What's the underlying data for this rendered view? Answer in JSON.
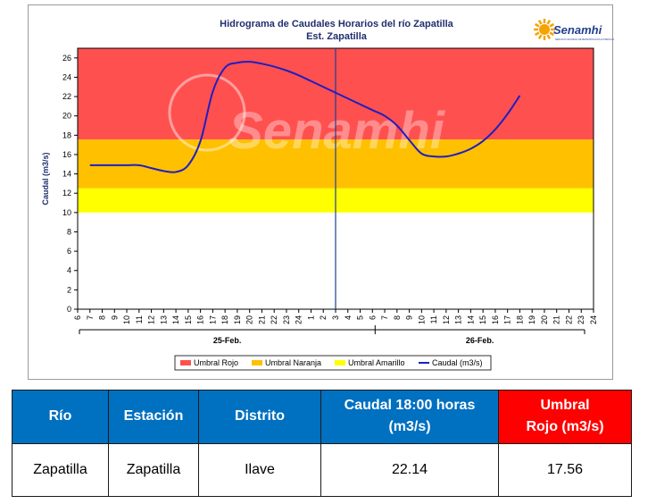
{
  "chart_data": {
    "type": "line",
    "title": "Hidrograma de Caudales Horarios del río Zapatilla",
    "subtitle": "Est. Zapatilla",
    "ylabel": "Caudal  (m3/s)",
    "xlabel": "",
    "ylim": [
      0,
      27
    ],
    "yticks": [
      0,
      2,
      4,
      6,
      8,
      10,
      12,
      14,
      16,
      18,
      20,
      22,
      24,
      26
    ],
    "x_tick_labels": [
      "6",
      "7",
      "8",
      "9",
      "10",
      "11",
      "12",
      "13",
      "14",
      "15",
      "16",
      "17",
      "18",
      "19",
      "20",
      "21",
      "22",
      "23",
      "24",
      "1",
      "2",
      "3",
      "4",
      "5",
      "6",
      "7",
      "8",
      "9",
      "10",
      "11",
      "12",
      "13",
      "14",
      "15",
      "16",
      "17",
      "18",
      "19",
      "20",
      "21",
      "22",
      "23",
      "24"
    ],
    "day_labels": [
      "25-Feb.",
      "26-Feb."
    ],
    "grid": false,
    "legend_position": "bottom",
    "bands": [
      {
        "name": "Umbral Rojo",
        "from": 17.56,
        "to": 27,
        "color": "#ff5050"
      },
      {
        "name": "Umbral Naranja",
        "from": 12.5,
        "to": 17.56,
        "color": "#ffc000"
      },
      {
        "name": "Umbral Amarillo",
        "from": 10,
        "to": 12.5,
        "color": "#ffff00"
      }
    ],
    "series": [
      {
        "name": "Caudal (m3/s)",
        "color": "#1f1fbf",
        "x": [
          7,
          8,
          9,
          10,
          11,
          12,
          13,
          14,
          15,
          16,
          17,
          18,
          19,
          20,
          21,
          22,
          23,
          24,
          25,
          26,
          27,
          28,
          29,
          30,
          31,
          32,
          33,
          34,
          35,
          36,
          37,
          38,
          39,
          40,
          41,
          42
        ],
        "values": [
          14.9,
          14.9,
          14.9,
          14.9,
          14.9,
          14.6,
          14.3,
          14.2,
          14.9,
          17.4,
          22.5,
          25.0,
          25.5,
          25.6,
          25.4,
          25.1,
          24.7,
          24.2,
          23.6,
          23.0,
          22.4,
          21.8,
          21.2,
          20.6,
          20.0,
          19.0,
          17.5,
          16.1,
          15.8,
          15.8,
          16.1,
          16.6,
          17.4,
          18.6,
          20.2,
          22.1
        ]
      }
    ],
    "marker_line": {
      "x": 27,
      "color": "#1f3f8f"
    },
    "watermark": "Senamhi"
  },
  "logo": {
    "text": "Senamhi",
    "subtext": "SERVICIO NACIONAL DE METEOROLOGÍA E HIDROLOGÍA DEL PERÚ"
  },
  "table": {
    "headers": {
      "rio": "Río",
      "estacion": "Estación",
      "distrito": "Distrito",
      "caudal_line1": "Caudal  18:00 horas",
      "caudal_line2": "(m3/s)",
      "umbral_line1": "Umbral",
      "umbral_line2": "Rojo (m3/s)"
    },
    "row": {
      "rio": "Zapatilla",
      "estacion": "Zapatilla",
      "distrito": "Ilave",
      "caudal": "22.14",
      "umbral": "17.56"
    }
  }
}
